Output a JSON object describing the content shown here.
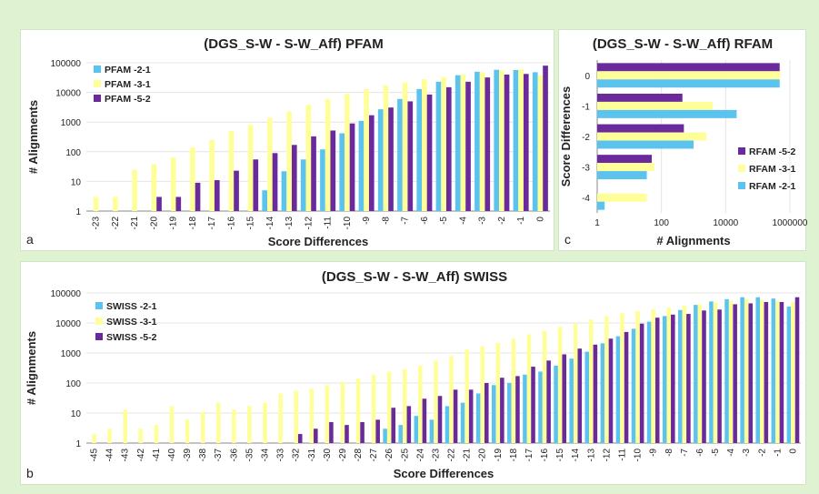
{
  "colors": {
    "s21": "#5bc3ee",
    "s31": "#ffff9a",
    "s52": "#6a2a9c",
    "background": "#dff3d3"
  },
  "panels": {
    "a": "a",
    "b": "b",
    "c": "c"
  },
  "chart_data": [
    {
      "id": "pfam",
      "type": "bar",
      "title": "(DGS_S-W - S-W_Aff) PFAM",
      "xlabel": "Score Differences",
      "ylabel": "# Alignments",
      "yscale": "log",
      "ylim": [
        1,
        100000
      ],
      "yticks": [
        "1",
        "10",
        "100",
        "1000",
        "10000",
        "100000"
      ],
      "legend_position": "top-left",
      "categories": [
        "-23",
        "-22",
        "-21",
        "-20",
        "-19",
        "-18",
        "-17",
        "-16",
        "-15",
        "-14",
        "-13",
        "-12",
        "-11",
        "-10",
        "-9",
        "-8",
        "-7",
        "-6",
        "-5",
        "-4",
        "-3",
        "-2",
        "-1",
        "0"
      ],
      "series": [
        {
          "name": "PFAM -2-1",
          "color": "#5bc3ee",
          "values": [
            null,
            null,
            null,
            null,
            null,
            null,
            null,
            null,
            null,
            5,
            22,
            55,
            120,
            420,
            1100,
            2700,
            6000,
            13000,
            23000,
            38000,
            50000,
            58000,
            57000,
            48000
          ]
        },
        {
          "name": "PFAM -3-1",
          "color": "#ffff9a",
          "values": [
            3,
            3,
            25,
            38,
            65,
            140,
            250,
            500,
            800,
            1400,
            2300,
            3800,
            6000,
            9000,
            13000,
            17000,
            22000,
            28000,
            33000,
            40000,
            48000,
            55000,
            60000,
            38000
          ]
        },
        {
          "name": "PFAM -5-2",
          "color": "#6a2a9c",
          "values": [
            null,
            null,
            null,
            3,
            3,
            9,
            11,
            23,
            55,
            90,
            170,
            330,
            520,
            900,
            1700,
            3100,
            5000,
            8500,
            15000,
            23000,
            32000,
            40000,
            42000,
            80000
          ]
        }
      ]
    },
    {
      "id": "rfam",
      "type": "bar",
      "orientation": "horizontal",
      "title": "(DGS_S-W - S-W_Aff) RFAM",
      "xlabel": "# Alignments",
      "ylabel": "Score Differences",
      "xscale": "log",
      "xlim": [
        1,
        1000000
      ],
      "xticks": [
        "1",
        "100",
        "10000",
        "1000000"
      ],
      "legend_position": "bottom-right",
      "categories": [
        "0",
        "-1",
        "-2",
        "-3",
        "-4"
      ],
      "series": [
        {
          "name": "RFAM -5-2",
          "color": "#6a2a9c",
          "values": [
            480000,
            450,
            500,
            50,
            null
          ]
        },
        {
          "name": "RFAM -3-1",
          "color": "#ffff9a",
          "values": [
            500000,
            4000,
            2500,
            60,
            35
          ]
        },
        {
          "name": "RFAM -2-1",
          "color": "#5bc3ee",
          "values": [
            480000,
            22000,
            1000,
            35,
            1.7
          ]
        }
      ]
    },
    {
      "id": "swiss",
      "type": "bar",
      "title": "(DGS_S-W - S-W_Aff) SWISS",
      "xlabel": "Score Differences",
      "ylabel": "# Alignments",
      "yscale": "log",
      "ylim": [
        1,
        100000
      ],
      "yticks": [
        "1",
        "10",
        "100",
        "1000",
        "10000",
        "100000"
      ],
      "legend_position": "top-left",
      "categories": [
        "-45",
        "-44",
        "-43",
        "-42",
        "-41",
        "-40",
        "-39",
        "-38",
        "-37",
        "-36",
        "-35",
        "-34",
        "-33",
        "-32",
        "-31",
        "-30",
        "-29",
        "-28",
        "-27",
        "-26",
        "-25",
        "-24",
        "-23",
        "-22",
        "-21",
        "-20",
        "-19",
        "-18",
        "-17",
        "-16",
        "-15",
        "-14",
        "-13",
        "-12",
        "-11",
        "-10",
        "-9",
        "-8",
        "-7",
        "-6",
        "-5",
        "-4",
        "-3",
        "-2",
        "-1",
        "0"
      ],
      "series": [
        {
          "name": "SWISS -2-1",
          "color": "#5bc3ee",
          "values": [
            null,
            null,
            null,
            null,
            null,
            null,
            null,
            null,
            null,
            null,
            null,
            null,
            null,
            null,
            null,
            null,
            null,
            null,
            null,
            3,
            4,
            8,
            6,
            17,
            22,
            45,
            85,
            100,
            190,
            240,
            380,
            650,
            1100,
            2100,
            3600,
            6400,
            11000,
            17000,
            27000,
            40000,
            52000,
            62000,
            72000,
            72000,
            65000,
            35000
          ]
        },
        {
          "name": "SWISS -3-1",
          "color": "#ffff9a",
          "values": [
            2,
            3,
            13,
            3,
            4,
            17,
            6,
            11,
            22,
            13,
            17,
            22,
            45,
            55,
            65,
            85,
            110,
            140,
            190,
            240,
            290,
            380,
            550,
            800,
            1300,
            1700,
            2200,
            3000,
            4200,
            5500,
            7500,
            9500,
            13000,
            17000,
            21000,
            25000,
            29000,
            33000,
            37000,
            42000,
            48000,
            55000,
            62000,
            58000,
            55000,
            50000
          ]
        },
        {
          "name": "SWISS -5-2",
          "color": "#6a2a9c",
          "values": [
            null,
            null,
            null,
            null,
            null,
            null,
            null,
            null,
            null,
            null,
            null,
            null,
            null,
            2,
            3,
            5,
            4,
            5,
            6,
            15,
            17,
            30,
            37,
            60,
            60,
            100,
            150,
            170,
            350,
            560,
            900,
            1400,
            1900,
            3000,
            5000,
            9500,
            15000,
            19000,
            20000,
            26000,
            28000,
            42000,
            45000,
            50000,
            50000,
            72000
          ]
        }
      ]
    }
  ]
}
